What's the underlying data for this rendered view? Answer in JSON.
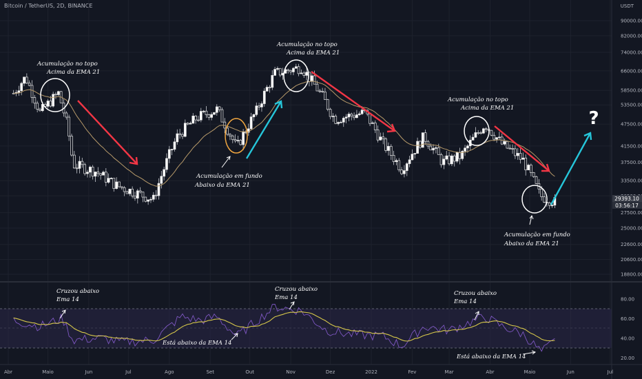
{
  "header": {
    "symbol_title": "Bitcoin / TetherUS, 2D, BINANCE",
    "currency": "USDT"
  },
  "colors": {
    "background": "#131722",
    "candle": "#e6e6e6",
    "ema": "#b79a6a",
    "rsi_line": "#7e57c2",
    "rsi_ma": "#d6c74a",
    "rsi_band": "#2a2747",
    "down_arrow": "#f23645",
    "up_arrow": "#26c6da",
    "bottom_circle": "#f0a640",
    "circle": "#ffffff"
  },
  "chart_data": [
    {
      "type": "candlestick",
      "title": "Bitcoin / TetherUS, 2D, BINANCE",
      "y_scale": "log",
      "y_ticks": [
        "90000.00",
        "82000.00",
        "74000.00",
        "66000.00",
        "58500.00",
        "53500.00",
        "47500.00",
        "41500.00",
        "37500.00",
        "33500.00",
        "30500.00",
        "27500.00",
        "25000.00",
        "22600.00",
        "20600.00",
        "18800.00"
      ],
      "x_ticks": [
        "Abr",
        "Maio",
        "Jun",
        "Jul",
        "Ago",
        "Set",
        "Out",
        "Nov",
        "Dez",
        "2022",
        "Fev",
        "Mar",
        "Abr",
        "Maio",
        "Jun",
        "Jul"
      ],
      "last_price": "29393.10",
      "countdown": "03:56:17",
      "overlays": [
        "EMA 21"
      ],
      "approx_closes": [
        {
          "date": "2021-04-05",
          "close": 57500
        },
        {
          "date": "2021-04-14",
          "close": 63500
        },
        {
          "date": "2021-04-25",
          "close": 51000
        },
        {
          "date": "2021-05-09",
          "close": 57500
        },
        {
          "date": "2021-05-16",
          "close": 46500
        },
        {
          "date": "2021-05-20",
          "close": 37000
        },
        {
          "date": "2021-06-06",
          "close": 35500
        },
        {
          "date": "2021-06-22",
          "close": 32500
        },
        {
          "date": "2021-07-20",
          "close": 29800
        },
        {
          "date": "2021-08-07",
          "close": 44000
        },
        {
          "date": "2021-08-22",
          "close": 49500
        },
        {
          "date": "2021-09-06",
          "close": 52000
        },
        {
          "date": "2021-09-21",
          "close": 41000
        },
        {
          "date": "2021-10-06",
          "close": 51500
        },
        {
          "date": "2021-10-20",
          "close": 65000
        },
        {
          "date": "2021-11-09",
          "close": 67500
        },
        {
          "date": "2021-11-24",
          "close": 57000
        },
        {
          "date": "2021-12-04",
          "close": 49000
        },
        {
          "date": "2021-12-27",
          "close": 51000
        },
        {
          "date": "2022-01-10",
          "close": 42000
        },
        {
          "date": "2022-01-24",
          "close": 36000
        },
        {
          "date": "2022-02-10",
          "close": 44000
        },
        {
          "date": "2022-02-24",
          "close": 37500
        },
        {
          "date": "2022-03-10",
          "close": 39000
        },
        {
          "date": "2022-03-28",
          "close": 47500
        },
        {
          "date": "2022-04-10",
          "close": 42000
        },
        {
          "date": "2022-04-26",
          "close": 38000
        },
        {
          "date": "2022-05-09",
          "close": 30500
        },
        {
          "date": "2022-05-20",
          "close": 29393.1
        }
      ]
    },
    {
      "type": "line",
      "name": "RSI",
      "y_ticks": [
        "80.00",
        "60.00",
        "40.00",
        "20.00"
      ],
      "band": [
        30,
        70
      ],
      "midline": 50,
      "overlays": [
        "EMA 14"
      ],
      "approx_rsi": [
        {
          "date": "2021-04-05",
          "value": 58
        },
        {
          "date": "2021-04-25",
          "value": 52
        },
        {
          "date": "2021-05-12",
          "value": 60
        },
        {
          "date": "2021-05-20",
          "value": 38
        },
        {
          "date": "2021-06-10",
          "value": 40
        },
        {
          "date": "2021-06-25",
          "value": 36
        },
        {
          "date": "2021-07-20",
          "value": 38
        },
        {
          "date": "2021-08-10",
          "value": 62
        },
        {
          "date": "2021-08-25",
          "value": 58
        },
        {
          "date": "2021-09-06",
          "value": 62
        },
        {
          "date": "2021-09-21",
          "value": 42
        },
        {
          "date": "2021-10-20",
          "value": 72
        },
        {
          "date": "2021-11-09",
          "value": 68
        },
        {
          "date": "2021-11-28",
          "value": 48
        },
        {
          "date": "2021-12-15",
          "value": 44
        },
        {
          "date": "2022-01-10",
          "value": 42
        },
        {
          "date": "2022-01-24",
          "value": 32
        },
        {
          "date": "2022-02-10",
          "value": 52
        },
        {
          "date": "2022-03-01",
          "value": 48
        },
        {
          "date": "2022-03-28",
          "value": 62
        },
        {
          "date": "2022-04-10",
          "value": 52
        },
        {
          "date": "2022-04-26",
          "value": 44
        },
        {
          "date": "2022-05-10",
          "value": 26
        },
        {
          "date": "2022-05-20",
          "value": 37
        }
      ]
    }
  ],
  "annotations": {
    "top1": [
      "Acumulação no topo",
      "Acima da EMA 21"
    ],
    "bottom1": [
      "Acumulação em fundo",
      "Abaixo da EMA 21"
    ],
    "top2": [
      "Acumulação no topo",
      "Acima da EMA 21"
    ],
    "top3": [
      "Acumulação no topo",
      "Acima da EMA 21"
    ],
    "bottom2": [
      "Acumulação em fundo",
      "Abaixo da EMA 21"
    ],
    "question": "?",
    "rsi1": [
      "Cruzou abaixo",
      "Ema 14"
    ],
    "rsi2": "Está abaixo da EMA 14",
    "rsi3": [
      "Cruzou abaixo",
      "Ema 14"
    ],
    "rsi4": [
      "Cruzou abaixo",
      "Ema 14"
    ],
    "rsi5": "Está abaixo da EMA 14"
  }
}
